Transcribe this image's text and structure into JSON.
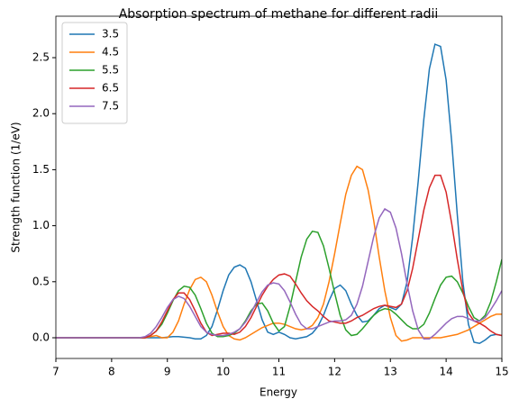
{
  "chart_data": {
    "type": "line",
    "title": "Absorption spectrum of methane for different radii",
    "x_label": "Energy",
    "y_label": "Strength function (1/eV)",
    "x": [
      7.0,
      7.1,
      7.2,
      7.3,
      7.4,
      7.5,
      7.6,
      7.7,
      7.8,
      7.9,
      8.0,
      8.1,
      8.2,
      8.3,
      8.4,
      8.5,
      8.6,
      8.7,
      8.8,
      8.9,
      9.0,
      9.1,
      9.2,
      9.3,
      9.4,
      9.5,
      9.6,
      9.7,
      9.8,
      9.9,
      10.0,
      10.1,
      10.2,
      10.3,
      10.4,
      10.5,
      10.6,
      10.7,
      10.8,
      10.9,
      11.0,
      11.1,
      11.2,
      11.3,
      11.4,
      11.5,
      11.6,
      11.7,
      11.8,
      11.9,
      12.0,
      12.1,
      12.2,
      12.3,
      12.4,
      12.5,
      12.6,
      12.7,
      12.8,
      12.9,
      13.0,
      13.1,
      13.2,
      13.3,
      13.4,
      13.5,
      13.6,
      13.7,
      13.8,
      13.9,
      14.0,
      14.1,
      14.2,
      14.3,
      14.4,
      14.5,
      14.6,
      14.7,
      14.8,
      14.9,
      15.0
    ],
    "series": [
      {
        "name": "3.5",
        "color": "#1f77b4",
        "values": [
          0,
          0,
          0,
          0,
          0,
          0,
          0,
          0,
          0,
          0,
          0,
          0,
          0,
          0,
          0,
          0,
          0,
          0,
          0,
          0,
          0.005,
          0.01,
          0.01,
          0.005,
          0,
          -0.01,
          -0.01,
          0.02,
          0.1,
          0.25,
          0.42,
          0.56,
          0.63,
          0.65,
          0.62,
          0.5,
          0.33,
          0.16,
          0.05,
          0.03,
          0.05,
          0.03,
          0,
          -0.01,
          0,
          0.01,
          0.04,
          0.1,
          0.2,
          0.33,
          0.44,
          0.47,
          0.42,
          0.3,
          0.2,
          0.14,
          0.15,
          0.2,
          0.26,
          0.29,
          0.27,
          0.25,
          0.3,
          0.5,
          0.9,
          1.4,
          1.95,
          2.4,
          2.62,
          2.6,
          2.3,
          1.75,
          1.1,
          0.5,
          0.12,
          -0.04,
          -0.05,
          -0.02,
          0.02,
          0.03,
          0.02
        ]
      },
      {
        "name": "4.5",
        "color": "#ff7f0e",
        "values": [
          0,
          0,
          0,
          0,
          0,
          0,
          0,
          0,
          0,
          0,
          0,
          0,
          0,
          0,
          0,
          0,
          0,
          0.01,
          0.02,
          0,
          0,
          0.05,
          0.15,
          0.3,
          0.43,
          0.52,
          0.54,
          0.5,
          0.38,
          0.23,
          0.1,
          0.02,
          -0.01,
          -0.02,
          0,
          0.03,
          0.06,
          0.09,
          0.11,
          0.13,
          0.13,
          0.12,
          0.1,
          0.08,
          0.07,
          0.08,
          0.11,
          0.18,
          0.3,
          0.5,
          0.75,
          1.02,
          1.28,
          1.45,
          1.53,
          1.5,
          1.32,
          1.05,
          0.72,
          0.42,
          0.18,
          0.02,
          -0.03,
          -0.02,
          0,
          0,
          0,
          0,
          0,
          0,
          0.01,
          0.02,
          0.03,
          0.05,
          0.07,
          0.1,
          0.13,
          0.16,
          0.19,
          0.21,
          0.21
        ]
      },
      {
        "name": "5.5",
        "color": "#2ca02c",
        "values": [
          0,
          0,
          0,
          0,
          0,
          0,
          0,
          0,
          0,
          0,
          0,
          0,
          0,
          0,
          0,
          0,
          0,
          0.02,
          0.06,
          0.12,
          0.22,
          0.33,
          0.42,
          0.46,
          0.45,
          0.38,
          0.26,
          0.13,
          0.04,
          0.01,
          0.01,
          0.02,
          0.04,
          0.08,
          0.15,
          0.24,
          0.3,
          0.31,
          0.24,
          0.13,
          0.06,
          0.1,
          0.28,
          0.5,
          0.72,
          0.88,
          0.95,
          0.94,
          0.82,
          0.62,
          0.4,
          0.2,
          0.07,
          0.02,
          0.03,
          0.08,
          0.14,
          0.2,
          0.24,
          0.26,
          0.25,
          0.21,
          0.16,
          0.11,
          0.08,
          0.08,
          0.12,
          0.22,
          0.35,
          0.47,
          0.54,
          0.55,
          0.5,
          0.4,
          0.28,
          0.18,
          0.15,
          0.2,
          0.32,
          0.5,
          0.7
        ]
      },
      {
        "name": "6.5",
        "color": "#d62728",
        "values": [
          0,
          0,
          0,
          0,
          0,
          0,
          0,
          0,
          0,
          0,
          0,
          0,
          0,
          0,
          0,
          0,
          0,
          0.02,
          0.06,
          0.14,
          0.24,
          0.34,
          0.4,
          0.4,
          0.34,
          0.24,
          0.13,
          0.05,
          0.02,
          0.03,
          0.04,
          0.04,
          0.03,
          0.05,
          0.1,
          0.18,
          0.28,
          0.38,
          0.46,
          0.52,
          0.56,
          0.57,
          0.55,
          0.48,
          0.4,
          0.33,
          0.28,
          0.24,
          0.19,
          0.15,
          0.14,
          0.13,
          0.13,
          0.15,
          0.18,
          0.2,
          0.23,
          0.26,
          0.28,
          0.29,
          0.28,
          0.27,
          0.3,
          0.42,
          0.62,
          0.88,
          1.14,
          1.34,
          1.45,
          1.45,
          1.3,
          1.02,
          0.7,
          0.42,
          0.22,
          0.15,
          0.13,
          0.1,
          0.06,
          0.03,
          0.02
        ]
      },
      {
        "name": "7.5",
        "color": "#9467bd",
        "values": [
          0,
          0,
          0,
          0,
          0,
          0,
          0,
          0,
          0,
          0,
          0,
          0,
          0,
          0,
          0,
          0,
          0.01,
          0.04,
          0.1,
          0.18,
          0.27,
          0.34,
          0.37,
          0.35,
          0.28,
          0.19,
          0.1,
          0.05,
          0.03,
          0.02,
          0.02,
          0.03,
          0.05,
          0.08,
          0.14,
          0.22,
          0.32,
          0.41,
          0.47,
          0.49,
          0.48,
          0.42,
          0.32,
          0.21,
          0.12,
          0.08,
          0.08,
          0.1,
          0.12,
          0.14,
          0.15,
          0.15,
          0.16,
          0.2,
          0.3,
          0.46,
          0.68,
          0.9,
          1.07,
          1.15,
          1.12,
          0.98,
          0.75,
          0.48,
          0.24,
          0.07,
          -0.01,
          -0.01,
          0.03,
          0.08,
          0.13,
          0.17,
          0.19,
          0.19,
          0.17,
          0.15,
          0.15,
          0.18,
          0.25,
          0.33,
          0.42
        ]
      }
    ],
    "xlim": [
      7,
      15
    ],
    "xticks": [
      7,
      8,
      9,
      10,
      11,
      12,
      13,
      14,
      15
    ],
    "ylim": [
      -0.185,
      2.87
    ],
    "yticks": [
      {
        "value": 0,
        "label": "0.0"
      },
      0.5,
      {
        "value": 1,
        "label": "1.0"
      },
      1.5,
      {
        "value": 2,
        "label": "2.0"
      },
      2.5
    ],
    "legend": "upper left",
    "grid": false
  }
}
